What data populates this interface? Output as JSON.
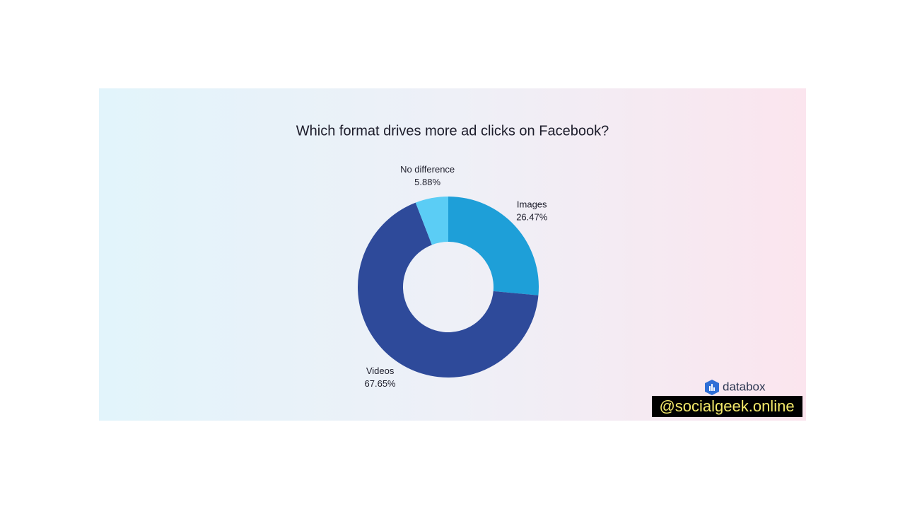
{
  "chart_data": {
    "type": "donut",
    "title": "Which format drives more ad clicks on Facebook?",
    "categories": [
      "Images",
      "Videos",
      "No difference"
    ],
    "values": [
      26.47,
      67.65,
      5.88
    ],
    "value_labels": [
      "26.47%",
      "67.65%",
      "5.88%"
    ],
    "colors": [
      "#1e9fd8",
      "#2e4a9a",
      "#5bcdf5"
    ],
    "source": "databox",
    "watermark": "@socialgeek.online"
  }
}
